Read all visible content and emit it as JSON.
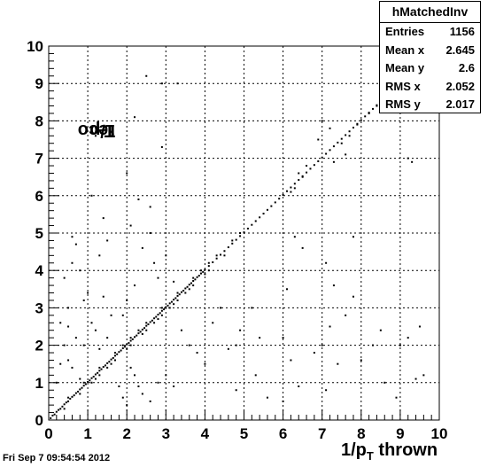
{
  "chart_data": {
    "type": "scatter",
    "title": "",
    "xlabel": {
      "main": "1/p",
      "sub": "T",
      "rest": " thrown"
    },
    "ylabel": {
      "main": "1/p",
      "sub": "T",
      "rest": " reco"
    },
    "xlim": [
      0,
      10
    ],
    "ylim": [
      0,
      10
    ],
    "x_ticks": [
      "0",
      "1",
      "2",
      "3",
      "4",
      "5",
      "6",
      "7",
      "8",
      "9",
      "10"
    ],
    "y_ticks": [
      "0",
      "1",
      "2",
      "3",
      "4",
      "5",
      "6",
      "7",
      "8",
      "9",
      "10"
    ],
    "grid": true,
    "points_description": "dense diagonal band y≈x plus scattered off-diagonal points",
    "points": [
      [
        0.05,
        0.05
      ],
      [
        0.1,
        0.12
      ],
      [
        0.15,
        0.15
      ],
      [
        0.2,
        0.22
      ],
      [
        0.25,
        0.27
      ],
      [
        0.3,
        0.3
      ],
      [
        0.35,
        0.36
      ],
      [
        0.4,
        0.42
      ],
      [
        0.45,
        0.47
      ],
      [
        0.5,
        0.5
      ],
      [
        0.55,
        0.57
      ],
      [
        0.6,
        0.62
      ],
      [
        0.65,
        0.66
      ],
      [
        0.7,
        0.72
      ],
      [
        0.75,
        0.76
      ],
      [
        0.8,
        0.82
      ],
      [
        0.85,
        0.86
      ],
      [
        0.9,
        0.92
      ],
      [
        0.95,
        0.96
      ],
      [
        1.0,
        1.02
      ],
      [
        1.05,
        1.06
      ],
      [
        1.1,
        1.12
      ],
      [
        1.15,
        1.16
      ],
      [
        1.2,
        1.22
      ],
      [
        1.25,
        1.26
      ],
      [
        1.3,
        1.32
      ],
      [
        1.35,
        1.36
      ],
      [
        1.4,
        1.42
      ],
      [
        1.45,
        1.46
      ],
      [
        1.5,
        1.52
      ],
      [
        1.55,
        1.56
      ],
      [
        1.6,
        1.62
      ],
      [
        1.65,
        1.66
      ],
      [
        1.7,
        1.72
      ],
      [
        1.75,
        1.76
      ],
      [
        1.8,
        1.82
      ],
      [
        1.85,
        1.86
      ],
      [
        1.9,
        1.92
      ],
      [
        1.95,
        1.96
      ],
      [
        2.0,
        2.02
      ],
      [
        2.05,
        2.06
      ],
      [
        2.1,
        2.12
      ],
      [
        2.15,
        2.16
      ],
      [
        2.2,
        2.22
      ],
      [
        2.25,
        2.26
      ],
      [
        2.3,
        2.32
      ],
      [
        2.35,
        2.36
      ],
      [
        2.4,
        2.42
      ],
      [
        2.45,
        2.46
      ],
      [
        2.5,
        2.52
      ],
      [
        2.55,
        2.56
      ],
      [
        2.6,
        2.62
      ],
      [
        2.65,
        2.66
      ],
      [
        2.7,
        2.72
      ],
      [
        2.75,
        2.76
      ],
      [
        2.8,
        2.82
      ],
      [
        2.85,
        2.86
      ],
      [
        2.9,
        2.92
      ],
      [
        2.95,
        2.96
      ],
      [
        3.0,
        3.02
      ],
      [
        3.05,
        3.06
      ],
      [
        3.1,
        3.12
      ],
      [
        3.15,
        3.16
      ],
      [
        3.2,
        3.22
      ],
      [
        3.25,
        3.26
      ],
      [
        3.3,
        3.32
      ],
      [
        3.35,
        3.36
      ],
      [
        3.4,
        3.42
      ],
      [
        3.45,
        3.46
      ],
      [
        3.5,
        3.52
      ],
      [
        3.55,
        3.56
      ],
      [
        3.6,
        3.62
      ],
      [
        3.65,
        3.66
      ],
      [
        3.7,
        3.72
      ],
      [
        3.75,
        3.76
      ],
      [
        3.8,
        3.82
      ],
      [
        3.85,
        3.86
      ],
      [
        3.9,
        3.92
      ],
      [
        3.95,
        3.96
      ],
      [
        4.0,
        4.02
      ],
      [
        4.1,
        4.12
      ],
      [
        4.2,
        4.22
      ],
      [
        4.3,
        4.32
      ],
      [
        4.4,
        4.42
      ],
      [
        4.5,
        4.52
      ],
      [
        4.6,
        4.62
      ],
      [
        4.7,
        4.72
      ],
      [
        4.8,
        4.82
      ],
      [
        4.9,
        4.92
      ],
      [
        5.0,
        5.02
      ],
      [
        5.1,
        5.12
      ],
      [
        5.2,
        5.22
      ],
      [
        5.3,
        5.32
      ],
      [
        5.4,
        5.42
      ],
      [
        5.5,
        5.52
      ],
      [
        5.6,
        5.62
      ],
      [
        5.7,
        5.72
      ],
      [
        5.8,
        5.82
      ],
      [
        5.9,
        5.92
      ],
      [
        6.0,
        6.02
      ],
      [
        6.1,
        6.12
      ],
      [
        6.2,
        6.22
      ],
      [
        6.3,
        6.32
      ],
      [
        6.4,
        6.42
      ],
      [
        6.5,
        6.52
      ],
      [
        6.6,
        6.62
      ],
      [
        6.7,
        6.72
      ],
      [
        6.8,
        6.82
      ],
      [
        6.9,
        6.92
      ],
      [
        7.0,
        7.02
      ],
      [
        7.1,
        7.12
      ],
      [
        7.2,
        7.22
      ],
      [
        7.3,
        7.32
      ],
      [
        7.4,
        7.42
      ],
      [
        7.5,
        7.52
      ],
      [
        7.6,
        7.62
      ],
      [
        7.7,
        7.72
      ],
      [
        7.8,
        7.82
      ],
      [
        7.9,
        7.92
      ],
      [
        8.0,
        8.02
      ],
      [
        8.1,
        8.12
      ],
      [
        8.2,
        8.22
      ],
      [
        8.3,
        8.32
      ],
      [
        8.4,
        8.42
      ],
      [
        8.5,
        8.52
      ],
      [
        8.6,
        8.62
      ],
      [
        8.7,
        8.72
      ],
      [
        8.8,
        8.82
      ],
      [
        8.9,
        8.92
      ],
      [
        9.0,
        9.02
      ],
      [
        1.1,
        1.0
      ],
      [
        1.3,
        1.4
      ],
      [
        1.5,
        1.4
      ],
      [
        1.7,
        1.6
      ],
      [
        1.9,
        2.0
      ],
      [
        2.1,
        2.0
      ],
      [
        2.3,
        2.4
      ],
      [
        2.5,
        2.6
      ],
      [
        2.7,
        2.6
      ],
      [
        2.9,
        3.0
      ],
      [
        3.1,
        3.0
      ],
      [
        3.3,
        3.4
      ],
      [
        3.5,
        3.4
      ],
      [
        3.7,
        3.8
      ],
      [
        3.9,
        4.0
      ],
      [
        4.1,
        4.0
      ],
      [
        4.3,
        4.4
      ],
      [
        4.5,
        4.4
      ],
      [
        4.7,
        4.8
      ],
      [
        4.9,
        5.0
      ],
      [
        0.4,
        0.3
      ],
      [
        0.8,
        0.7
      ],
      [
        1.2,
        1.1
      ],
      [
        1.6,
        1.5
      ],
      [
        2.0,
        1.9
      ],
      [
        2.4,
        2.3
      ],
      [
        2.8,
        2.7
      ],
      [
        3.2,
        3.1
      ],
      [
        3.6,
        3.5
      ],
      [
        4.0,
        3.9
      ],
      [
        0.5,
        0.6
      ],
      [
        0.9,
        1.0
      ],
      [
        1.3,
        1.2
      ],
      [
        1.7,
        1.8
      ],
      [
        2.1,
        2.2
      ],
      [
        2.5,
        2.4
      ],
      [
        2.9,
        2.8
      ],
      [
        3.3,
        3.2
      ],
      [
        3.7,
        3.6
      ],
      [
        4.1,
        4.2
      ],
      [
        0.2,
        1.0
      ],
      [
        0.3,
        1.5
      ],
      [
        0.4,
        2.0
      ],
      [
        0.5,
        2.5
      ],
      [
        0.6,
        4.9
      ],
      [
        0.7,
        4.7
      ],
      [
        0.6,
        4.2
      ],
      [
        0.8,
        4.0
      ],
      [
        0.4,
        3.8
      ],
      [
        0.5,
        3.0
      ],
      [
        0.7,
        2.2
      ],
      [
        0.9,
        2.0
      ],
      [
        0.6,
        1.4
      ],
      [
        0.8,
        1.1
      ],
      [
        0.5,
        1.6
      ],
      [
        0.3,
        2.6
      ],
      [
        0.9,
        3.2
      ],
      [
        1.0,
        3.4
      ],
      [
        1.1,
        2.6
      ],
      [
        1.2,
        2.4
      ],
      [
        1.1,
        6.0
      ],
      [
        1.2,
        7.6
      ],
      [
        1.4,
        5.4
      ],
      [
        1.5,
        4.8
      ],
      [
        1.3,
        4.4
      ],
      [
        1.4,
        3.3
      ],
      [
        1.6,
        2.8
      ],
      [
        1.5,
        2.2
      ],
      [
        1.3,
        1.9
      ],
      [
        1.8,
        0.9
      ],
      [
        1.9,
        0.6
      ],
      [
        2.0,
        0.4
      ],
      [
        2.1,
        1.4
      ],
      [
        2.2,
        1.2
      ],
      [
        2.3,
        0.9
      ],
      [
        2.4,
        0.7
      ],
      [
        2.6,
        0.5
      ],
      [
        2.8,
        1.0
      ],
      [
        3.0,
        1.2
      ],
      [
        3.2,
        0.9
      ],
      [
        1.9,
        2.8
      ],
      [
        2.0,
        3.2
      ],
      [
        2.2,
        3.6
      ],
      [
        2.4,
        4.6
      ],
      [
        2.6,
        5.0
      ],
      [
        2.1,
        5.2
      ],
      [
        2.3,
        5.9
      ],
      [
        2.0,
        6.6
      ],
      [
        2.2,
        8.1
      ],
      [
        2.5,
        9.2
      ],
      [
        2.9,
        9.0
      ],
      [
        3.3,
        9.0
      ],
      [
        2.9,
        7.3
      ],
      [
        2.6,
        5.7
      ],
      [
        2.7,
        4.2
      ],
      [
        2.8,
        3.8
      ],
      [
        3.0,
        4.4
      ],
      [
        3.2,
        3.7
      ],
      [
        3.4,
        2.4
      ],
      [
        3.6,
        2.0
      ],
      [
        3.8,
        1.8
      ],
      [
        4.0,
        1.5
      ],
      [
        4.2,
        2.6
      ],
      [
        4.4,
        3.0
      ],
      [
        4.6,
        1.9
      ],
      [
        4.8,
        0.8
      ],
      [
        4.9,
        2.4
      ],
      [
        5.2,
        3.0
      ],
      [
        5.4,
        2.2
      ],
      [
        5.3,
        1.2
      ],
      [
        5.6,
        0.6
      ],
      [
        6.0,
        2.2
      ],
      [
        6.2,
        1.6
      ],
      [
        6.4,
        0.9
      ],
      [
        6.0,
        0.5
      ],
      [
        6.1,
        3.5
      ],
      [
        6.3,
        4.9
      ],
      [
        6.2,
        6.1
      ],
      [
        6.3,
        6.2
      ],
      [
        6.5,
        6.5
      ],
      [
        6.8,
        1.8
      ],
      [
        7.0,
        2.0
      ],
      [
        7.2,
        2.5
      ],
      [
        7.1,
        4.2
      ],
      [
        7.3,
        3.6
      ],
      [
        7.1,
        0.8
      ],
      [
        7.4,
        1.5
      ],
      [
        7.6,
        2.8
      ],
      [
        7.8,
        3.3
      ],
      [
        7.8,
        4.9
      ],
      [
        8.0,
        1.6
      ],
      [
        8.3,
        2.0
      ],
      [
        8.5,
        2.4
      ],
      [
        8.6,
        1.0
      ],
      [
        8.9,
        0.6
      ],
      [
        9.0,
        2.0
      ],
      [
        9.2,
        2.2
      ],
      [
        9.4,
        1.1
      ],
      [
        9.6,
        1.2
      ],
      [
        9.5,
        2.5
      ],
      [
        7.0,
        8.0
      ],
      [
        7.2,
        7.8
      ],
      [
        7.3,
        6.9
      ],
      [
        7.5,
        7.4
      ],
      [
        7.7,
        7.6
      ],
      [
        7.9,
        7.9
      ],
      [
        7.6,
        7.1
      ],
      [
        8.2,
        8.2
      ],
      [
        8.4,
        8.4
      ],
      [
        8.6,
        8.8
      ],
      [
        8.7,
        9.0
      ],
      [
        8.8,
        9.3
      ],
      [
        9.2,
        7.0
      ],
      [
        9.3,
        6.9
      ],
      [
        8.8,
        9.6
      ],
      [
        6.9,
        7.5
      ],
      [
        6.6,
        6.8
      ],
      [
        6.4,
        6.6
      ],
      [
        6.5,
        4.6
      ],
      [
        4.8,
        2.0
      ]
    ]
  },
  "stats": {
    "title": "hMatchedInv",
    "rows": [
      {
        "label": "Entries",
        "value": "1156"
      },
      {
        "label": "Mean x",
        "value": "2.645"
      },
      {
        "label": "Mean y",
        "value": "2.6"
      },
      {
        "label": "RMS x",
        "value": "2.052"
      },
      {
        "label": "RMS y",
        "value": "2.017"
      }
    ]
  },
  "footer": "Fri Sep  7 09:54:54 2012"
}
